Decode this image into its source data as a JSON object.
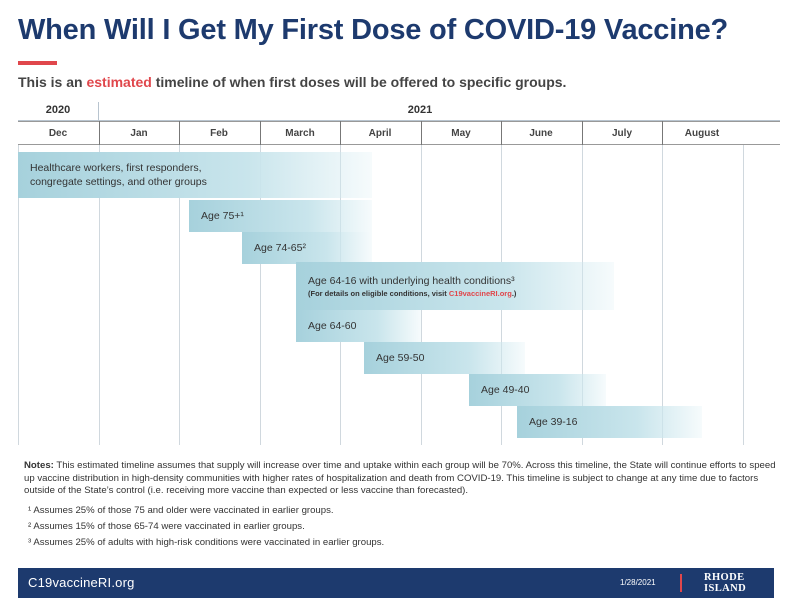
{
  "title": "When Will I Get My First Dose of COVID-19 Vaccine?",
  "subtitle": {
    "before": "This is an ",
    "highlight": "estimated",
    "after": " timeline of when first doses will be offered to specific groups."
  },
  "chart_data": {
    "type": "gantt",
    "years": [
      "2020",
      "2021"
    ],
    "months": [
      "Dec",
      "Jan",
      "Feb",
      "March",
      "April",
      "May",
      "June",
      "July",
      "August"
    ],
    "x_unit": "months since start of Dec 2020",
    "tasks": [
      {
        "label": "Healthcare workers, first responders,",
        "label2": "congregate settings, and other groups",
        "start": 0.0,
        "end": 4.4
      },
      {
        "label": "Age 75+¹",
        "start": 2.13,
        "end": 4.4
      },
      {
        "label": "Age 74-65²",
        "start": 2.78,
        "end": 4.4
      },
      {
        "label": "Age 64-16 with underlying health conditions³",
        "note_before": "(For details on eligible conditions, visit ",
        "note_link": "C19vaccineRI.org",
        "note_after": ".)",
        "start": 3.45,
        "end": 7.4
      },
      {
        "label": "Age 64-60",
        "start": 3.45,
        "end": 5.0
      },
      {
        "label": "Age 59-50",
        "start": 4.3,
        "end": 6.3
      },
      {
        "label": "Age 49-40",
        "start": 5.6,
        "end": 7.3
      },
      {
        "label": "Age 39-16",
        "start": 6.2,
        "end": 8.5
      }
    ]
  },
  "notes": {
    "label": "Notes:",
    "text": " This estimated timeline assumes that supply will increase over time and uptake within each group will be 70%. Across this timeline, the State will continue efforts to speed up vaccine distribution in high-density communities with higher rates of hospitalization and death from COVID-19. This timeline is subject to change at any time due to factors outside of the State’s control (i.e. receiving more vaccine than expected or less vaccine than forecasted).",
    "footnotes": [
      "¹ Assumes 25% of those 75 and older were vaccinated in earlier groups.",
      "² Assumes 15% of those 65-74 were vaccinated in earlier groups.",
      "³ Assumes 25% of adults with high-risk conditions were vaccinated in earlier groups."
    ]
  },
  "footer": {
    "url": "C19vaccineRI.org",
    "date": "1/28/2021",
    "logo_line1": "RHODE",
    "logo_line2": "ISLAND"
  }
}
